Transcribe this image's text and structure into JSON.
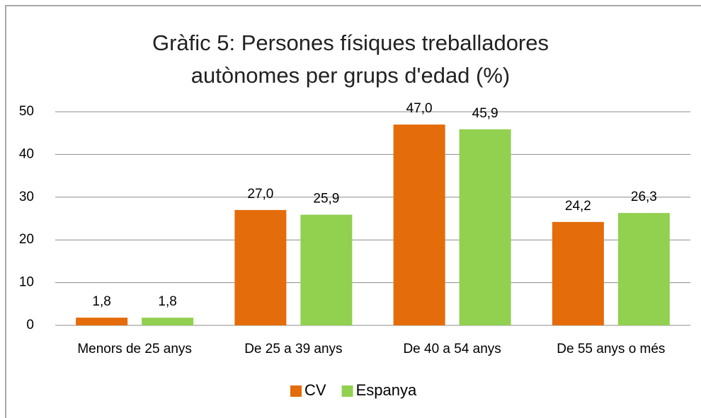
{
  "chart_data": {
    "type": "bar",
    "title": "Gràfic 5: Persones físiques treballadores autònomes per grups d'edad (%)",
    "categories": [
      "Menors de 25 anys",
      "De 25 a 39 anys",
      "De 40 a 54 anys",
      "De 55 anys o més"
    ],
    "series": [
      {
        "name": "CV",
        "color": "#e46c0a",
        "values": [
          1.8,
          27.0,
          47.0,
          24.2
        ],
        "value_labels": [
          "1,8",
          "27,0",
          "47,0",
          "24,2"
        ]
      },
      {
        "name": "Espanya",
        "color": "#92d050",
        "values": [
          1.8,
          25.9,
          45.9,
          26.3
        ],
        "value_labels": [
          "1,8",
          "25,9",
          "45,9",
          "26,3"
        ]
      }
    ],
    "ylim": [
      0,
      50
    ],
    "yticks": [
      0,
      10,
      20,
      30,
      40,
      50
    ],
    "grid": true,
    "legend": "bottom"
  }
}
